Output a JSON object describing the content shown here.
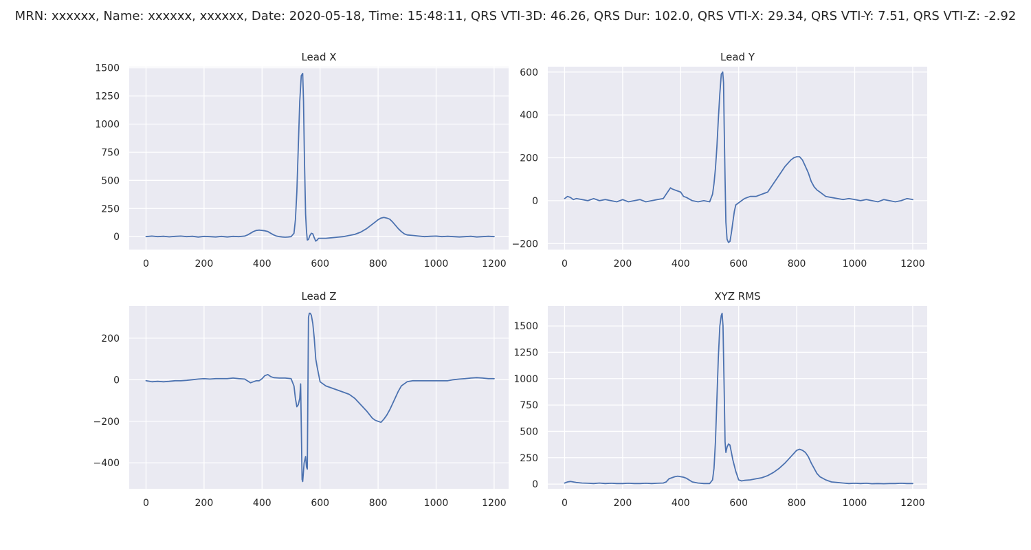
{
  "figure_title": "MRN: xxxxxx, Name: xxxxxx, xxxxxx, Date: 2020-05-18, Time: 15:48:11, QRS VTI-3D: 46.26, QRS Dur: 102.0, QRS VTI-X: 29.34, QRS VTI-Y: 7.51, QRS VTI-Z: -2.92",
  "colors": {
    "line": "#4c72b0",
    "plot_bg": "#eaeaf2",
    "grid": "#ffffff",
    "text": "#262626"
  },
  "chart_data": [
    {
      "type": "line",
      "title": "Lead X",
      "xlim": [
        -58,
        1250
      ],
      "ylim": [
        -115,
        1510
      ],
      "xticks": [
        0,
        200,
        400,
        600,
        800,
        1000,
        1200
      ],
      "yticks": [
        0,
        250,
        500,
        750,
        1000,
        1250,
        1500
      ],
      "grid": true,
      "x": [
        0,
        20,
        40,
        60,
        80,
        100,
        120,
        140,
        160,
        180,
        200,
        220,
        240,
        260,
        280,
        300,
        320,
        340,
        350,
        360,
        370,
        380,
        390,
        400,
        410,
        420,
        430,
        440,
        450,
        460,
        470,
        480,
        490,
        500,
        510,
        515,
        520,
        525,
        530,
        535,
        540,
        543,
        546,
        550,
        553,
        556,
        560,
        565,
        570,
        575,
        580,
        585,
        590,
        595,
        600,
        605,
        610,
        620,
        640,
        660,
        680,
        700,
        720,
        740,
        760,
        780,
        790,
        800,
        810,
        820,
        830,
        840,
        850,
        860,
        870,
        880,
        890,
        900,
        920,
        940,
        960,
        980,
        1000,
        1020,
        1040,
        1060,
        1080,
        1100,
        1120,
        1140,
        1160,
        1180,
        1200
      ],
      "y": [
        0,
        5,
        0,
        3,
        -2,
        2,
        5,
        0,
        3,
        -4,
        2,
        0,
        -3,
        2,
        -3,
        2,
        0,
        5,
        15,
        30,
        45,
        55,
        58,
        55,
        52,
        45,
        30,
        15,
        5,
        0,
        -3,
        -5,
        -3,
        0,
        30,
        150,
        400,
        800,
        1200,
        1430,
        1450,
        1200,
        700,
        200,
        50,
        -30,
        -25,
        10,
        30,
        25,
        -10,
        -40,
        -30,
        -15,
        -15,
        -15,
        -15,
        -15,
        -10,
        -5,
        0,
        10,
        20,
        40,
        70,
        110,
        130,
        150,
        165,
        170,
        165,
        155,
        130,
        100,
        70,
        45,
        25,
        15,
        10,
        5,
        0,
        3,
        5,
        0,
        3,
        0,
        -3,
        0,
        3,
        -3,
        0,
        3,
        0
      ]
    },
    {
      "type": "line",
      "title": "Lead Y",
      "xlim": [
        -58,
        1250
      ],
      "ylim": [
        -228,
        625
      ],
      "xticks": [
        0,
        200,
        400,
        600,
        800,
        1000,
        1200
      ],
      "yticks": [
        -200,
        0,
        200,
        400,
        600
      ],
      "grid": true,
      "x": [
        0,
        10,
        20,
        30,
        40,
        60,
        80,
        100,
        120,
        140,
        160,
        180,
        200,
        220,
        240,
        260,
        280,
        300,
        320,
        340,
        360,
        365,
        370,
        380,
        390,
        400,
        410,
        420,
        440,
        460,
        480,
        500,
        510,
        515,
        520,
        525,
        530,
        535,
        540,
        545,
        548,
        550,
        553,
        556,
        560,
        565,
        570,
        575,
        580,
        585,
        590,
        600,
        610,
        620,
        640,
        660,
        680,
        700,
        720,
        740,
        760,
        780,
        790,
        800,
        810,
        820,
        830,
        840,
        850,
        860,
        870,
        880,
        900,
        920,
        940,
        960,
        980,
        1000,
        1020,
        1040,
        1060,
        1080,
        1100,
        1120,
        1140,
        1160,
        1180,
        1200
      ],
      "y": [
        10,
        20,
        15,
        5,
        10,
        5,
        0,
        10,
        0,
        5,
        0,
        -5,
        5,
        -5,
        0,
        5,
        -5,
        0,
        5,
        10,
        50,
        60,
        55,
        50,
        45,
        40,
        20,
        15,
        0,
        -5,
        0,
        -5,
        30,
        80,
        150,
        250,
        380,
        500,
        590,
        600,
        550,
        350,
        100,
        -100,
        -180,
        -195,
        -190,
        -150,
        -100,
        -50,
        -20,
        -10,
        0,
        10,
        20,
        20,
        30,
        40,
        80,
        120,
        160,
        190,
        200,
        205,
        205,
        190,
        160,
        130,
        90,
        65,
        50,
        40,
        20,
        15,
        10,
        5,
        10,
        5,
        0,
        5,
        0,
        -5,
        5,
        0,
        -5,
        0,
        10,
        5
      ]
    },
    {
      "type": "line",
      "title": "Lead Z",
      "xlim": [
        -58,
        1250
      ],
      "ylim": [
        -525,
        355
      ],
      "xticks": [
        0,
        200,
        400,
        600,
        800,
        1000,
        1200
      ],
      "yticks": [
        -400,
        -200,
        0,
        200
      ],
      "grid": true,
      "x": [
        0,
        20,
        40,
        60,
        80,
        100,
        120,
        140,
        160,
        180,
        200,
        220,
        240,
        260,
        280,
        300,
        320,
        340,
        360,
        370,
        380,
        390,
        400,
        410,
        420,
        430,
        440,
        460,
        480,
        500,
        510,
        515,
        520,
        525,
        530,
        533,
        536,
        538,
        540,
        545,
        550,
        553,
        556,
        560,
        563,
        566,
        570,
        575,
        580,
        585,
        590,
        600,
        620,
        640,
        660,
        680,
        700,
        720,
        740,
        760,
        780,
        790,
        800,
        810,
        820,
        830,
        840,
        850,
        860,
        870,
        880,
        900,
        920,
        940,
        960,
        980,
        1000,
        1020,
        1040,
        1060,
        1080,
        1100,
        1120,
        1140,
        1160,
        1180,
        1200
      ],
      "y": [
        -5,
        -10,
        -8,
        -10,
        -8,
        -5,
        -5,
        -3,
        0,
        3,
        5,
        3,
        5,
        5,
        5,
        8,
        5,
        3,
        -15,
        -10,
        -5,
        -5,
        5,
        20,
        25,
        15,
        10,
        8,
        8,
        5,
        -30,
        -90,
        -130,
        -120,
        -90,
        -20,
        -300,
        -480,
        -490,
        -400,
        -370,
        -420,
        -430,
        300,
        320,
        320,
        310,
        270,
        200,
        100,
        60,
        -10,
        -30,
        -40,
        -50,
        -60,
        -70,
        -90,
        -120,
        -150,
        -185,
        -195,
        -200,
        -205,
        -190,
        -170,
        -145,
        -115,
        -85,
        -55,
        -30,
        -10,
        -5,
        -5,
        -5,
        -5,
        -5,
        -5,
        -5,
        0,
        3,
        5,
        8,
        10,
        8,
        5,
        5
      ]
    },
    {
      "type": "line",
      "title": "XYZ RMS",
      "xlim": [
        -58,
        1250
      ],
      "ylim": [
        -45,
        1690
      ],
      "xticks": [
        0,
        200,
        400,
        600,
        800,
        1000,
        1200
      ],
      "yticks": [
        0,
        250,
        500,
        750,
        1000,
        1250,
        1500
      ],
      "grid": true,
      "x": [
        0,
        10,
        20,
        40,
        60,
        80,
        100,
        120,
        140,
        160,
        180,
        200,
        220,
        240,
        260,
        280,
        300,
        320,
        340,
        350,
        360,
        370,
        380,
        390,
        400,
        410,
        420,
        440,
        460,
        480,
        500,
        510,
        515,
        520,
        525,
        530,
        535,
        540,
        543,
        546,
        550,
        553,
        556,
        560,
        565,
        570,
        575,
        580,
        590,
        600,
        610,
        620,
        640,
        660,
        680,
        700,
        720,
        740,
        760,
        780,
        790,
        800,
        810,
        820,
        830,
        840,
        850,
        860,
        870,
        880,
        900,
        920,
        940,
        960,
        980,
        1000,
        1020,
        1040,
        1060,
        1080,
        1100,
        1120,
        1140,
        1160,
        1180,
        1200
      ],
      "y": [
        10,
        20,
        25,
        15,
        10,
        8,
        5,
        10,
        5,
        8,
        5,
        5,
        8,
        5,
        5,
        8,
        5,
        8,
        10,
        20,
        50,
        60,
        70,
        75,
        70,
        65,
        55,
        20,
        10,
        5,
        5,
        40,
        150,
        400,
        800,
        1200,
        1500,
        1600,
        1620,
        1500,
        900,
        400,
        300,
        350,
        380,
        370,
        300,
        230,
        120,
        40,
        30,
        35,
        40,
        50,
        60,
        80,
        110,
        150,
        200,
        260,
        290,
        320,
        330,
        320,
        300,
        260,
        200,
        150,
        100,
        70,
        40,
        20,
        15,
        10,
        5,
        8,
        5,
        8,
        3,
        5,
        3,
        5,
        5,
        8,
        5,
        5
      ]
    }
  ]
}
